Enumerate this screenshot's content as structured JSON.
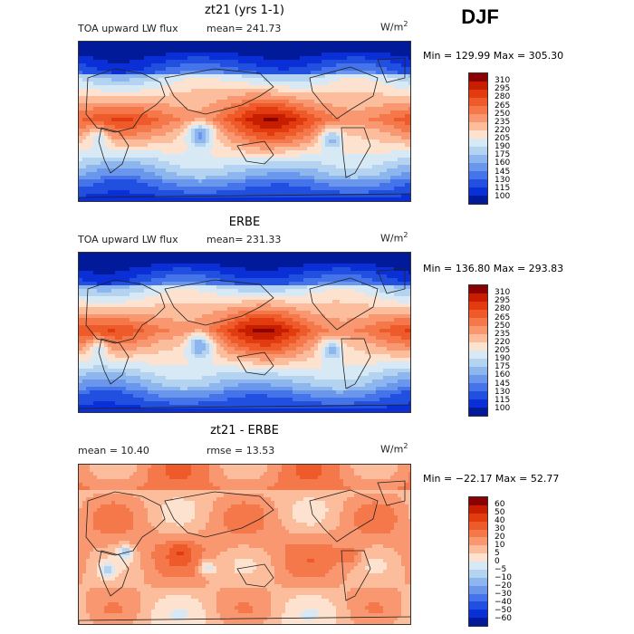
{
  "season": "DJF",
  "panels": [
    {
      "title": "zt21 (yrs 1-1)",
      "left_label": "TOA upward LW flux",
      "mid_label": "mean= 241.73",
      "unit_main": "W/m",
      "unit_sup": "2",
      "minmax": "Min = 129.99 Max = 305.30",
      "palette": "abs",
      "colorbar": {
        "labels": [
          "310",
          "295",
          "280",
          "265",
          "250",
          "235",
          "220",
          "205",
          "190",
          "175",
          "160",
          "145",
          "130",
          "115",
          "100"
        ],
        "colors": [
          "#8b0000",
          "#c81e00",
          "#e33b10",
          "#ef5a2b",
          "#f5784a",
          "#f99870",
          "#fbbd9c",
          "#fde3cf",
          "#d8e9f6",
          "#b4d3f1",
          "#8cb6ed",
          "#6a97ec",
          "#4574ea",
          "#2150e0",
          "#0a2fd6",
          "#001a9a"
        ]
      }
    },
    {
      "title": "ERBE",
      "left_label": "TOA upward LW flux",
      "mid_label": "mean= 231.33",
      "unit_main": "W/m",
      "unit_sup": "2",
      "minmax": "Min = 136.80 Max = 293.83",
      "palette": "abs",
      "colorbar": {
        "labels": [
          "310",
          "295",
          "280",
          "265",
          "250",
          "235",
          "220",
          "205",
          "190",
          "175",
          "160",
          "145",
          "130",
          "115",
          "100"
        ],
        "colors": [
          "#8b0000",
          "#c81e00",
          "#e33b10",
          "#ef5a2b",
          "#f5784a",
          "#f99870",
          "#fbbd9c",
          "#fde3cf",
          "#d8e9f6",
          "#b4d3f1",
          "#8cb6ed",
          "#6a97ec",
          "#4574ea",
          "#2150e0",
          "#0a2fd6",
          "#001a9a"
        ]
      }
    },
    {
      "title": "zt21 - ERBE",
      "left_label": "mean =  10.40",
      "mid_label": "rmse =  13.53",
      "unit_main": "W/m",
      "unit_sup": "2",
      "minmax": "Min = −22.17 Max =  52.77",
      "palette": "diff",
      "colorbar": {
        "labels": [
          "60",
          "50",
          "40",
          "30",
          "20",
          "10",
          "5",
          "0",
          "−5",
          "−10",
          "−20",
          "−30",
          "−40",
          "−50",
          "−60"
        ],
        "colors": [
          "#8b0000",
          "#c81e00",
          "#e33b10",
          "#ef5a2b",
          "#f5784a",
          "#f99870",
          "#fbbd9c",
          "#fde3cf",
          "#d8e9f6",
          "#b4d3f1",
          "#8cb6ed",
          "#6a97ec",
          "#4574ea",
          "#2150e0",
          "#0a2fd6",
          "#001a9a"
        ]
      }
    }
  ]
}
